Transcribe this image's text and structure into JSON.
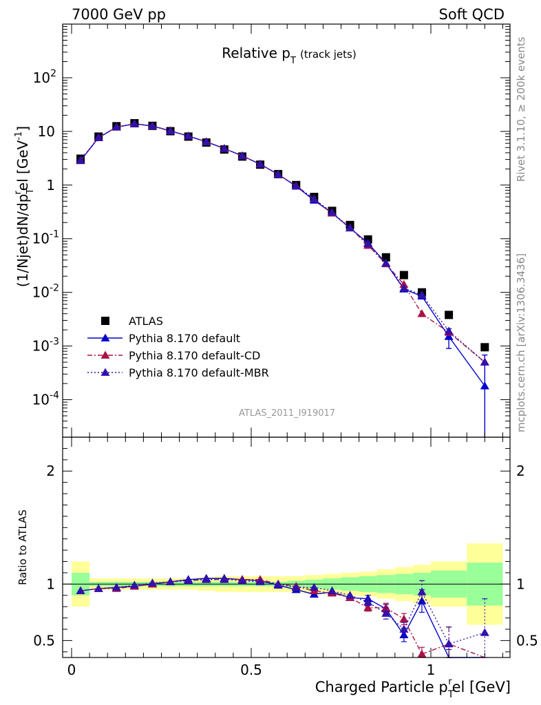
{
  "header": {
    "left": "7000 GeV pp",
    "right": "Soft QCD"
  },
  "side_labels": {
    "rivet": "Rivet 3.1.10, ≥ 200k events",
    "mcplots": "mcplots.cern.ch [arXiv:1306.3436]"
  },
  "chart_data": [
    {
      "type": "scatter",
      "panel": "main",
      "title": "Relative p",
      "title_sub": "T",
      "title_suffix": "(track jets)",
      "ylabel": "(1/Njet)dN/dpᵀʳel [GeV⁻¹]",
      "ylabel_parts": {
        "a": "(1/Njet)dN/dp",
        "sub": "T",
        "sup_r": "r",
        "b": "el [GeV",
        "sup_m1": "-1",
        "c": "]"
      },
      "yscale": "log",
      "ylim": [
        2e-05,
        1000
      ],
      "xlim": [
        -0.02,
        1.2
      ],
      "y_ticks": [
        {
          "v": 0.0001,
          "base": "10",
          "exp": "-4"
        },
        {
          "v": 0.001,
          "base": "10",
          "exp": "-3"
        },
        {
          "v": 0.01,
          "base": "10",
          "exp": "-2"
        },
        {
          "v": 0.1,
          "base": "10",
          "exp": "-1"
        },
        {
          "v": 1,
          "base": "1",
          "exp": ""
        },
        {
          "v": 10,
          "base": "10",
          "exp": ""
        },
        {
          "v": 100,
          "base": "10",
          "exp": "2"
        }
      ],
      "watermark": "ATLAS_2011_I919017",
      "legend": {
        "position": "bottom-left",
        "entries": [
          "ATLAS",
          "Pythia 8.170 default",
          "Pythia 8.170 default-CD",
          "Pythia 8.170 default-MBR"
        ]
      },
      "x": [
        0.025,
        0.075,
        0.125,
        0.175,
        0.225,
        0.275,
        0.325,
        0.375,
        0.425,
        0.475,
        0.525,
        0.575,
        0.625,
        0.675,
        0.725,
        0.775,
        0.825,
        0.875,
        0.925,
        0.975,
        1.05,
        1.15
      ],
      "series": [
        {
          "name": "ATLAS",
          "color": "#000000",
          "marker": "square",
          "values": [
            3.1,
            8.0,
            12.5,
            14.2,
            12.7,
            10.1,
            8.0,
            6.2,
            4.6,
            3.4,
            2.4,
            1.6,
            1.0,
            0.6,
            0.33,
            0.18,
            0.097,
            0.045,
            0.021,
            0.01,
            0.0038,
            0.00095
          ]
        },
        {
          "name": "Pythia 8.170 default",
          "color": "#0000cc",
          "marker": "triangle",
          "dash": "",
          "values": [
            2.85,
            7.6,
            12.0,
            13.8,
            12.6,
            10.2,
            8.2,
            6.4,
            4.8,
            3.5,
            2.45,
            1.58,
            0.95,
            0.52,
            0.3,
            0.158,
            0.083,
            0.035,
            0.0115,
            0.0085,
            0.0015,
            0.00018
          ],
          "err_lo": [
            0,
            0,
            0,
            0,
            0,
            0,
            0,
            0,
            0,
            0,
            0,
            0,
            0,
            0,
            0,
            0,
            0,
            0,
            0,
            0,
            0.0006,
            0.00018
          ],
          "err_hi": [
            0,
            0,
            0,
            0,
            0,
            0,
            0,
            0,
            0,
            0,
            0,
            0,
            0,
            0,
            0,
            0,
            0,
            0,
            0,
            0,
            0.0006,
            0.0005
          ]
        },
        {
          "name": "Pythia 8.170 default-CD",
          "color": "#aa1144",
          "marker": "triangle",
          "dash": "7,3,2,3",
          "values": [
            2.9,
            7.7,
            12.0,
            13.9,
            12.7,
            10.3,
            8.2,
            6.4,
            4.8,
            3.5,
            2.45,
            1.58,
            0.97,
            0.55,
            0.3,
            0.16,
            0.075,
            0.034,
            0.014,
            0.004,
            0.0018,
            0.0005
          ]
        },
        {
          "name": "Pythia 8.170 default-MBR",
          "color": "#3311aa",
          "marker": "triangle",
          "dash": "2,3",
          "values": [
            2.9,
            7.7,
            12.1,
            13.9,
            12.6,
            10.2,
            8.2,
            6.4,
            4.8,
            3.5,
            2.45,
            1.58,
            0.96,
            0.55,
            0.31,
            0.16,
            0.08,
            0.035,
            0.012,
            0.009,
            0.0019,
            0.0005
          ]
        }
      ]
    },
    {
      "type": "scatter",
      "panel": "ratio",
      "ylabel": "Ratio to ATLAS",
      "xlabel": "Charged Particle p",
      "xlabel_sub": "T",
      "xlabel_sup": "r",
      "xlabel_suffix": "el [GeV]",
      "ylim": [
        0.35,
        2.3
      ],
      "xlim": [
        -0.02,
        1.2
      ],
      "y_ticks": [
        0.5,
        1,
        2
      ],
      "y_tick_labels": [
        "0.5",
        "1",
        "2"
      ],
      "x_ticks": [
        0,
        0.5,
        1
      ],
      "x_tick_labels": [
        "0",
        "0.5",
        "1"
      ],
      "bin_edges": [
        0.0,
        0.05,
        0.1,
        0.15,
        0.2,
        0.25,
        0.3,
        0.35,
        0.4,
        0.45,
        0.5,
        0.55,
        0.6,
        0.65,
        0.7,
        0.75,
        0.8,
        0.85,
        0.9,
        0.95,
        1.0,
        1.1,
        1.2
      ],
      "band_stat": [
        0.1,
        0.02,
        0.02,
        0.02,
        0.02,
        0.02,
        0.02,
        0.02,
        0.02,
        0.02,
        0.02,
        0.02,
        0.03,
        0.04,
        0.05,
        0.06,
        0.07,
        0.08,
        0.09,
        0.1,
        0.12,
        0.19
      ],
      "band_total": [
        0.2,
        0.05,
        0.05,
        0.05,
        0.05,
        0.05,
        0.05,
        0.06,
        0.07,
        0.07,
        0.07,
        0.07,
        0.07,
        0.08,
        0.09,
        0.1,
        0.11,
        0.13,
        0.15,
        0.17,
        0.2,
        0.36
      ],
      "x": [
        0.025,
        0.075,
        0.125,
        0.175,
        0.225,
        0.275,
        0.325,
        0.375,
        0.425,
        0.475,
        0.525,
        0.575,
        0.625,
        0.675,
        0.725,
        0.775,
        0.825,
        0.875,
        0.925,
        0.975,
        1.05,
        1.15
      ],
      "series": [
        {
          "name": "Pythia 8.170 default",
          "color": "#0000cc",
          "dash": "",
          "values": [
            0.94,
            0.96,
            0.97,
            0.98,
            1.0,
            1.02,
            1.04,
            1.05,
            1.05,
            1.04,
            1.03,
            0.99,
            0.95,
            0.91,
            0.93,
            0.88,
            0.87,
            0.78,
            0.55,
            0.85,
            0.34,
            null
          ],
          "err": [
            0,
            0,
            0,
            0,
            0,
            0,
            0,
            0,
            0,
            0,
            0,
            0,
            0,
            0,
            0,
            0,
            0.03,
            0.04,
            0.06,
            0.1,
            0.08,
            0
          ]
        },
        {
          "name": "Pythia 8.170 default-CD",
          "color": "#aa1144",
          "dash": "7,3,2,3",
          "values": [
            0.94,
            0.96,
            0.96,
            0.98,
            1.0,
            1.02,
            1.03,
            1.04,
            1.04,
            1.04,
            1.04,
            1.0,
            0.98,
            0.94,
            0.92,
            0.88,
            0.79,
            0.79,
            0.69,
            0.38,
            0.47,
            null
          ],
          "err": [
            0,
            0,
            0,
            0,
            0,
            0,
            0,
            0,
            0,
            0,
            0,
            0,
            0,
            0,
            0,
            0,
            0.03,
            0.04,
            0.05,
            0.06,
            0.15,
            0
          ]
        },
        {
          "name": "Pythia 8.170 default-MBR",
          "color": "#3311aa",
          "dash": "2,3",
          "values": [
            0.94,
            0.96,
            0.97,
            0.99,
            1.01,
            1.02,
            1.03,
            1.04,
            1.04,
            1.03,
            1.02,
            1.0,
            0.97,
            0.97,
            0.94,
            0.9,
            0.84,
            0.74,
            0.6,
            0.93,
            0.47,
            0.57
          ],
          "err": [
            0,
            0,
            0,
            0,
            0,
            0,
            0,
            0,
            0,
            0,
            0,
            0,
            0,
            0,
            0,
            0,
            0.03,
            0.05,
            0.06,
            0.1,
            0.15,
            0.3
          ]
        }
      ]
    }
  ]
}
